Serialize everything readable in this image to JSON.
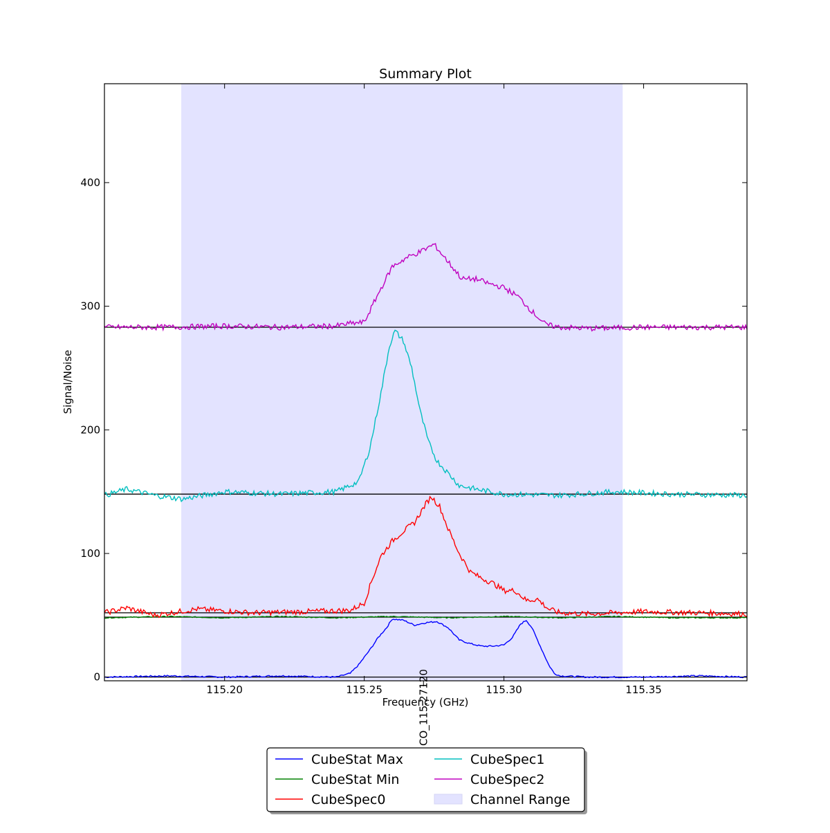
{
  "chart_data": {
    "type": "line",
    "title": "Summary Plot",
    "xlabel": "Frequency (GHz)",
    "ylabel": "Signal/Noise",
    "xlim": [
      115.157,
      115.387
    ],
    "ylim": [
      -3,
      480
    ],
    "xticks": [
      115.2,
      115.25,
      115.3,
      115.35
    ],
    "xtick_labels": [
      "115.20",
      "115.25",
      "115.30",
      "115.35"
    ],
    "yticks": [
      0,
      100,
      200,
      300,
      400
    ],
    "ytick_labels": [
      "0",
      "100",
      "200",
      "300",
      "400"
    ],
    "grid": false,
    "legend_position": "bottom-center",
    "channel_range": {
      "name": "Channel Range",
      "x": [
        115.1845,
        115.3425
      ],
      "color": "#e3e3ff"
    },
    "line_marker": {
      "label": "CO_115.27120",
      "x": 115.2712
    },
    "baselines": [
      {
        "y": 0,
        "color": "#000000"
      },
      {
        "y": 48.5,
        "color": "#000000"
      },
      {
        "y": 52,
        "color": "#000000"
      },
      {
        "y": 148,
        "color": "#000000"
      },
      {
        "y": 283,
        "color": "#000000"
      }
    ],
    "series": [
      {
        "name": "CubeStat Max",
        "color": "#0000ff",
        "x": [
          115.157,
          115.18,
          115.2,
          115.22,
          115.24,
          115.245,
          115.248,
          115.252,
          115.255,
          115.258,
          115.26,
          115.264,
          115.268,
          115.272,
          115.276,
          115.28,
          115.284,
          115.288,
          115.292,
          115.296,
          115.3,
          115.303,
          115.306,
          115.308,
          115.31,
          115.313,
          115.316,
          115.318,
          115.32,
          115.33,
          115.35,
          115.37,
          115.387
        ],
        "y": [
          0,
          1,
          0,
          1,
          0,
          3,
          10,
          22,
          32,
          40,
          47,
          46,
          42,
          44,
          45,
          40,
          30,
          27,
          25,
          25,
          26,
          32,
          43,
          46,
          40,
          25,
          10,
          3,
          1,
          0,
          0,
          1,
          0
        ]
      },
      {
        "name": "CubeStat Min",
        "color": "#008000",
        "x": [
          115.157,
          115.18,
          115.2,
          115.22,
          115.24,
          115.26,
          115.28,
          115.3,
          115.32,
          115.34,
          115.36,
          115.387
        ],
        "y": [
          48,
          49,
          48,
          49,
          48,
          49,
          48,
          49,
          48,
          49,
          48,
          48
        ]
      },
      {
        "name": "CubeSpec0",
        "color": "#ff0000",
        "x": [
          115.157,
          115.165,
          115.175,
          115.19,
          115.21,
          115.23,
          115.245,
          115.25,
          115.253,
          115.256,
          115.26,
          115.264,
          115.268,
          115.272,
          115.274,
          115.277,
          115.28,
          115.284,
          115.288,
          115.292,
          115.296,
          115.3,
          115.304,
          115.308,
          115.312,
          115.316,
          115.32,
          115.33,
          115.35,
          115.37,
          115.387
        ],
        "y": [
          52,
          56,
          50,
          55,
          52,
          53,
          54,
          60,
          80,
          98,
          110,
          118,
          125,
          140,
          146,
          138,
          120,
          100,
          85,
          80,
          76,
          70,
          70,
          62,
          63,
          55,
          52,
          51,
          53,
          52,
          51
        ]
      },
      {
        "name": "CubeSpec1",
        "color": "#00bfbf",
        "x": [
          115.157,
          115.165,
          115.175,
          115.185,
          115.2,
          115.22,
          115.24,
          115.248,
          115.252,
          115.256,
          115.259,
          115.261,
          115.264,
          115.267,
          115.27,
          115.273,
          115.276,
          115.28,
          115.284,
          115.29,
          115.3,
          115.32,
          115.34,
          115.36,
          115.387
        ],
        "y": [
          147,
          152,
          147,
          144,
          150,
          148,
          150,
          158,
          185,
          230,
          268,
          280,
          272,
          250,
          215,
          190,
          175,
          165,
          155,
          152,
          148,
          147,
          150,
          148,
          147
        ]
      },
      {
        "name": "CubeSpec2",
        "color": "#bf00bf",
        "x": [
          115.157,
          115.18,
          115.2,
          115.22,
          115.24,
          115.245,
          115.25,
          115.255,
          115.26,
          115.265,
          115.27,
          115.275,
          115.28,
          115.285,
          115.29,
          115.295,
          115.3,
          115.305,
          115.31,
          115.315,
          115.32,
          115.33,
          115.35,
          115.37,
          115.387
        ],
        "y": [
          283,
          283,
          284,
          283,
          284,
          286,
          287,
          310,
          332,
          339,
          344,
          350,
          336,
          322,
          322,
          318,
          315,
          308,
          296,
          285,
          283,
          282,
          283,
          283,
          283
        ]
      }
    ]
  }
}
